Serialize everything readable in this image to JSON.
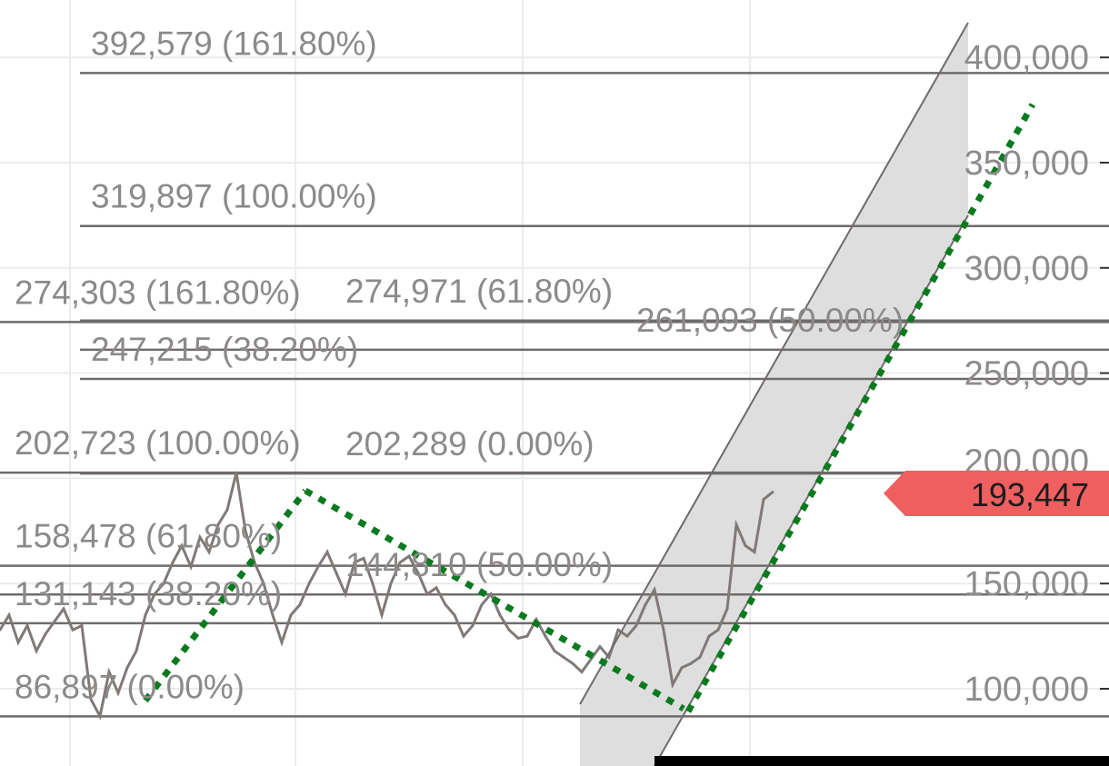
{
  "chart_data": {
    "type": "line",
    "title": "",
    "xlabel": "",
    "ylabel": "",
    "ylim": [
      75000,
      420000
    ],
    "grid": true,
    "y_ticks": [
      {
        "value": 100000,
        "label": "100,000"
      },
      {
        "value": 150000,
        "label": "150,000"
      },
      {
        "value": 200000,
        "label": "200,000"
      },
      {
        "value": 250000,
        "label": "250,000"
      },
      {
        "value": 300000,
        "label": "300,000"
      },
      {
        "value": 350000,
        "label": "350,000"
      },
      {
        "value": 400000,
        "label": "400,000"
      }
    ],
    "series": [
      {
        "color": "#7f7a78",
        "values": [
          128000,
          135000,
          122000,
          130000,
          118000,
          126000,
          132000,
          138000,
          128000,
          130000,
          95000,
          86897,
          108000,
          98000,
          110000,
          118000,
          135000,
          145000,
          150000,
          160000,
          168000,
          158000,
          172000,
          165000,
          178000,
          185000,
          202723,
          175000,
          160000,
          150000,
          135000,
          122000,
          135000,
          140000,
          150000,
          158000,
          165000,
          155000,
          145000,
          160000,
          162000,
          150000,
          135000,
          150000,
          160000,
          163000,
          155000,
          145000,
          148000,
          140000,
          135000,
          125000,
          130000,
          140000,
          145000,
          135000,
          128000,
          124000,
          125000,
          133000,
          125000,
          118000,
          115000,
          112000,
          108000,
          114000,
          120000,
          115000,
          128000,
          125000,
          130000,
          140000,
          147000,
          128000,
          102000,
          110000,
          112000,
          115000,
          125000,
          128000,
          138000,
          178000,
          168000,
          165000,
          190000,
          193447
        ]
      }
    ],
    "last_price": {
      "value": 193447,
      "label": "193,447",
      "color": "#ef5f5f"
    },
    "fibonacci_sets": [
      {
        "color": "#6f6b6a",
        "levels": [
          {
            "value": 86897,
            "label": "86,897 (0.00%)"
          },
          {
            "value": 131143,
            "label": "131,143 (38.20%)"
          },
          {
            "value": 144810,
            "label": "144,810 (50.00%)"
          },
          {
            "value": 158478,
            "label": "158,478 (61.80%)"
          },
          {
            "value": 202723,
            "label": "202,723 (100.00%)"
          },
          {
            "value": 274303,
            "label": "274,303 (161.80%)"
          }
        ]
      },
      {
        "color": "#6f6b6a",
        "levels": [
          {
            "value": 202289,
            "label": "202,289 (0.00%)"
          },
          {
            "value": 247215,
            "label": "247,215 (38.20%)"
          },
          {
            "value": 261093,
            "label": "261,093 (50.00%)"
          },
          {
            "value": 274971,
            "label": "274,971 (61.80%)"
          },
          {
            "value": 319897,
            "label": "319,897 (100.00%)"
          },
          {
            "value": 392579,
            "label": "392,579 (161.80%)"
          }
        ]
      }
    ],
    "trendline_color": "#0a7a1e",
    "channel_color": "#dedede"
  }
}
